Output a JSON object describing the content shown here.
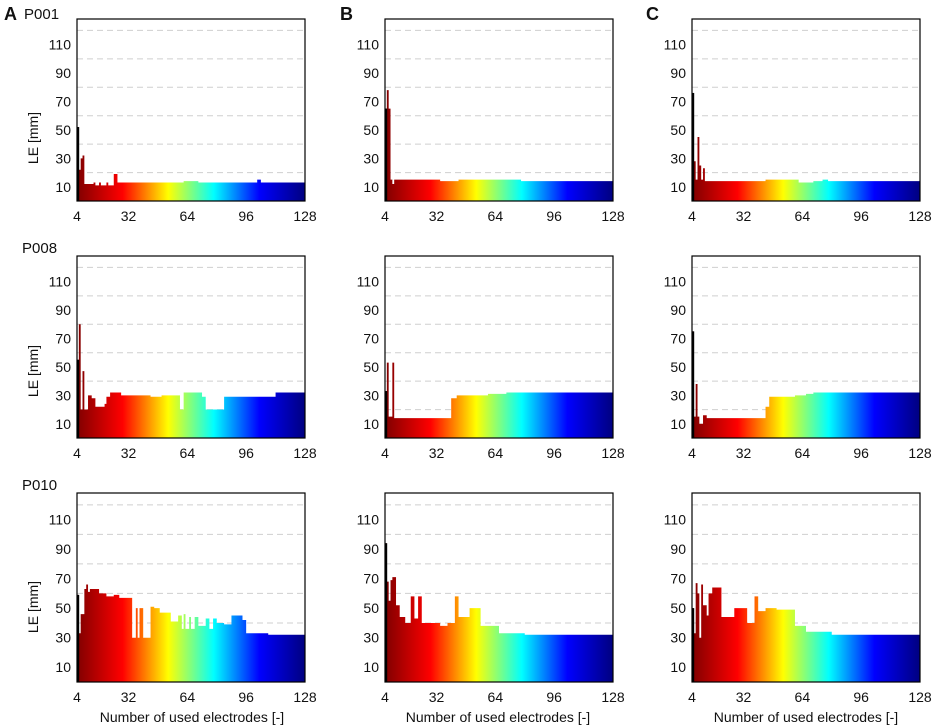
{
  "figure": {
    "column_labels": [
      "A",
      "B",
      "C"
    ],
    "row_labels": [
      "P001",
      "P008",
      "P010"
    ],
    "shared_xlabel": "Number of used electrodes [-]",
    "shared_ylabel": "LE [mm]",
    "xticks": [
      4,
      32,
      64,
      96,
      128
    ],
    "yticks": [
      10,
      30,
      50,
      70,
      90,
      110
    ],
    "ygrid": [
      20,
      40,
      60,
      80,
      100,
      120
    ],
    "colormap": [
      "#800000",
      "#ff0000",
      "#ffff00",
      "#00ffff",
      "#0000ff",
      "#000080"
    ]
  },
  "chart_data": [
    {
      "id": "P001-A",
      "type": "bar",
      "xlim": [
        4,
        128
      ],
      "ylim": [
        0,
        128
      ],
      "ylabel": "LE [mm]",
      "steps": [
        [
          4,
          52
        ],
        [
          5,
          22
        ],
        [
          6,
          30
        ],
        [
          7,
          32
        ],
        [
          8,
          12
        ],
        [
          13,
          13
        ],
        [
          14,
          11
        ],
        [
          16,
          13
        ],
        [
          17,
          11
        ],
        [
          20,
          13
        ],
        [
          21,
          11
        ],
        [
          24,
          19
        ],
        [
          26,
          13
        ],
        [
          62,
          14
        ],
        [
          70,
          13
        ],
        [
          102,
          15
        ],
        [
          104,
          13
        ]
      ]
    },
    {
      "id": "P001-B",
      "type": "bar",
      "xlim": [
        4,
        128
      ],
      "ylim": [
        0,
        128
      ],
      "steps": [
        [
          4,
          65
        ],
        [
          5,
          78
        ],
        [
          6,
          65
        ],
        [
          7,
          15
        ],
        [
          8,
          12
        ],
        [
          9,
          15
        ],
        [
          34,
          14
        ],
        [
          44,
          15
        ],
        [
          78,
          14
        ]
      ]
    },
    {
      "id": "P001-C",
      "type": "bar",
      "xlim": [
        4,
        128
      ],
      "ylim": [
        0,
        128
      ],
      "steps": [
        [
          4,
          76
        ],
        [
          5,
          28
        ],
        [
          6,
          15
        ],
        [
          7,
          45
        ],
        [
          8,
          25
        ],
        [
          9,
          15
        ],
        [
          10,
          23
        ],
        [
          11,
          14
        ],
        [
          44,
          15
        ],
        [
          62,
          13
        ],
        [
          70,
          14
        ],
        [
          75,
          15
        ],
        [
          78,
          14
        ]
      ]
    },
    {
      "id": "P008-A",
      "type": "bar",
      "xlim": [
        4,
        128
      ],
      "ylim": [
        0,
        128
      ],
      "ylabel": "LE [mm]",
      "steps": [
        [
          4,
          55
        ],
        [
          5,
          80
        ],
        [
          6,
          20
        ],
        [
          7,
          47
        ],
        [
          8,
          20
        ],
        [
          10,
          30
        ],
        [
          12,
          28
        ],
        [
          14,
          22
        ],
        [
          19,
          24
        ],
        [
          20,
          29
        ],
        [
          22,
          32
        ],
        [
          28,
          30
        ],
        [
          44,
          29
        ],
        [
          50,
          30
        ],
        [
          60,
          20
        ],
        [
          62,
          32
        ],
        [
          72,
          29
        ],
        [
          74,
          20
        ],
        [
          84,
          29
        ],
        [
          112,
          32
        ]
      ]
    },
    {
      "id": "P008-B",
      "type": "bar",
      "xlim": [
        4,
        128
      ],
      "ylim": [
        0,
        128
      ],
      "steps": [
        [
          4,
          33
        ],
        [
          5,
          53
        ],
        [
          6,
          15
        ],
        [
          8,
          53
        ],
        [
          9,
          14
        ],
        [
          40,
          28
        ],
        [
          43,
          30
        ],
        [
          60,
          31
        ],
        [
          70,
          32
        ]
      ]
    },
    {
      "id": "P008-C",
      "type": "bar",
      "xlim": [
        4,
        128
      ],
      "ylim": [
        0,
        128
      ],
      "steps": [
        [
          4,
          75
        ],
        [
          5,
          15
        ],
        [
          6,
          38
        ],
        [
          7,
          15
        ],
        [
          8,
          10
        ],
        [
          10,
          16
        ],
        [
          12,
          14
        ],
        [
          44,
          22
        ],
        [
          46,
          29
        ],
        [
          60,
          30
        ],
        [
          66,
          31
        ],
        [
          70,
          32
        ]
      ]
    },
    {
      "id": "P010-A",
      "type": "bar",
      "xlim": [
        4,
        128
      ],
      "ylim": [
        0,
        128
      ],
      "xlabel": "Number of used electrodes [-]",
      "ylabel": "LE [mm]",
      "steps": [
        [
          4,
          59
        ],
        [
          5,
          33
        ],
        [
          6,
          46
        ],
        [
          8,
          63
        ],
        [
          9,
          66
        ],
        [
          10,
          61
        ],
        [
          11,
          63
        ],
        [
          16,
          60
        ],
        [
          20,
          58
        ],
        [
          24,
          59
        ],
        [
          27,
          57
        ],
        [
          34,
          30
        ],
        [
          36,
          50
        ],
        [
          37,
          30
        ],
        [
          38,
          50
        ],
        [
          40,
          30
        ],
        [
          44,
          51
        ],
        [
          46,
          50
        ],
        [
          49,
          47
        ],
        [
          55,
          41
        ],
        [
          59,
          45
        ],
        [
          61,
          36
        ],
        [
          62,
          46
        ],
        [
          63,
          36
        ],
        [
          65,
          44
        ],
        [
          66,
          36
        ],
        [
          68,
          44
        ],
        [
          70,
          38
        ],
        [
          71,
          38
        ],
        [
          74,
          43
        ],
        [
          76,
          36
        ],
        [
          78,
          43
        ],
        [
          80,
          40
        ],
        [
          84,
          39
        ],
        [
          88,
          45
        ],
        [
          94,
          42
        ],
        [
          96,
          33
        ],
        [
          108,
          32
        ]
      ]
    },
    {
      "id": "P010-B",
      "type": "bar",
      "xlim": [
        4,
        128
      ],
      "ylim": [
        0,
        128
      ],
      "xlabel": "Number of used electrodes [-]",
      "steps": [
        [
          4,
          94
        ],
        [
          5,
          68
        ],
        [
          6,
          55
        ],
        [
          7,
          69
        ],
        [
          8,
          71
        ],
        [
          10,
          52
        ],
        [
          12,
          44
        ],
        [
          15,
          40
        ],
        [
          18,
          58
        ],
        [
          20,
          43
        ],
        [
          22,
          58
        ],
        [
          24,
          40
        ],
        [
          30,
          40
        ],
        [
          34,
          38
        ],
        [
          38,
          40
        ],
        [
          42,
          58
        ],
        [
          44,
          44
        ],
        [
          50,
          50
        ],
        [
          56,
          38
        ],
        [
          66,
          33
        ],
        [
          80,
          32
        ]
      ]
    },
    {
      "id": "P010-C",
      "type": "bar",
      "xlim": [
        4,
        128
      ],
      "ylim": [
        0,
        128
      ],
      "xlabel": "Number of used electrodes [-]",
      "steps": [
        [
          4,
          50
        ],
        [
          5,
          33
        ],
        [
          6,
          67
        ],
        [
          7,
          60
        ],
        [
          8,
          30
        ],
        [
          9,
          66
        ],
        [
          10,
          52
        ],
        [
          12,
          45
        ],
        [
          13,
          60
        ],
        [
          15,
          64
        ],
        [
          20,
          44
        ],
        [
          27,
          50
        ],
        [
          34,
          40
        ],
        [
          38,
          58
        ],
        [
          40,
          48
        ],
        [
          44,
          50
        ],
        [
          50,
          49
        ],
        [
          60,
          38
        ],
        [
          66,
          34
        ],
        [
          80,
          32
        ]
      ]
    }
  ]
}
